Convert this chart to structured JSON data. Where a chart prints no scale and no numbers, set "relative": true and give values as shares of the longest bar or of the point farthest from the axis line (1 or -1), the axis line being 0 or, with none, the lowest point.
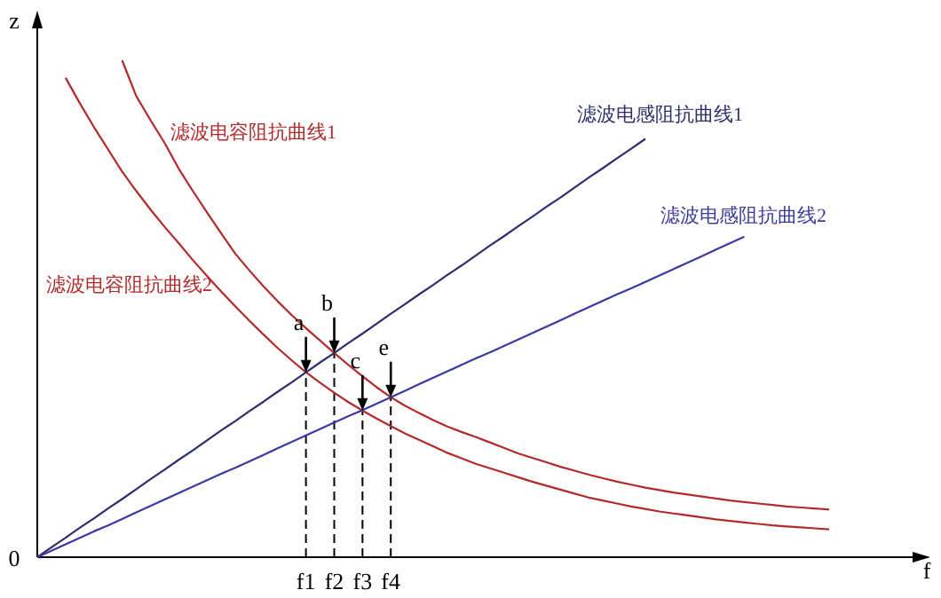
{
  "chart_data": {
    "type": "line",
    "relative": true,
    "xlabel": "f",
    "ylabel": "z",
    "marker": "none",
    "line_style": "solid",
    "categories": [
      null,
      null,
      null,
      null,
      null,
      null,
      null,
      null,
      null,
      null,
      null,
      null,
      null,
      null,
      null,
      null,
      null,
      null,
      null,
      "f1",
      null,
      "f2",
      null,
      "f3",
      null,
      "f4",
      null,
      null,
      null,
      null,
      null,
      null,
      null,
      null,
      null,
      null,
      null,
      null,
      null,
      null,
      null,
      null,
      null,
      null,
      null,
      null,
      null,
      null,
      null,
      null,
      null,
      null,
      null,
      null,
      null,
      null,
      null
    ],
    "series": [
      {
        "name": "滤波电容阻抗曲线1",
        "color": "#b22a2a",
        "values": [
          null,
          null,
          null,
          null,
          null,
          null,
          1.0,
          0.928,
          0.88,
          0.834,
          0.782,
          0.737,
          0.694,
          0.652,
          0.611,
          0.577,
          0.545,
          0.515,
          0.487,
          0.461,
          0.436,
          0.411,
          0.387,
          0.364,
          0.342,
          0.322,
          0.305,
          0.29,
          0.276,
          0.263,
          0.252,
          0.242,
          0.231,
          0.22,
          0.209,
          0.2,
          0.191,
          0.182,
          0.174,
          0.166,
          0.159,
          0.152,
          0.146,
          0.14,
          0.135,
          0.13,
          0.126,
          0.122,
          0.118,
          0.114,
          0.111,
          0.108,
          0.105,
          0.102,
          0.1,
          0.098,
          0.096
        ]
      },
      {
        "name": "滤波电容阻抗曲线2",
        "color": "#b22a2a",
        "values": [
          null,
          null,
          0.965,
          0.914,
          0.866,
          0.821,
          0.776,
          0.737,
          0.7,
          0.665,
          0.632,
          0.598,
          0.566,
          0.535,
          0.505,
          0.476,
          0.448,
          0.421,
          0.396,
          0.372,
          0.351,
          0.331,
          0.312,
          0.295,
          0.279,
          0.264,
          0.249,
          0.236,
          0.223,
          0.21,
          0.199,
          0.188,
          0.179,
          0.17,
          0.161,
          0.152,
          0.144,
          0.136,
          0.128,
          0.12,
          0.114,
          0.108,
          0.102,
          0.097,
          0.092,
          0.088,
          0.084,
          0.08,
          0.076,
          0.073,
          0.07,
          0.067,
          0.064,
          0.062,
          0.06,
          0.058,
          0.056
        ]
      },
      {
        "name": "滤波电感阻抗曲线1",
        "color": "#2e2e6e",
        "values": [
          0,
          0.02,
          0.039,
          0.059,
          0.078,
          0.098,
          0.117,
          0.137,
          0.157,
          0.176,
          0.196,
          0.215,
          0.235,
          0.255,
          0.274,
          0.294,
          0.313,
          0.333,
          0.352,
          0.372,
          0.392,
          0.411,
          0.431,
          0.45,
          0.47,
          0.49,
          0.509,
          0.529,
          0.548,
          0.568,
          0.587,
          0.607,
          0.627,
          0.646,
          0.666,
          0.685,
          0.705,
          0.724,
          0.744,
          0.764,
          0.783,
          0.803,
          0.822,
          0.842,
          null,
          null,
          null,
          null,
          null,
          null,
          null,
          null,
          null,
          null,
          null,
          null,
          null
        ]
      },
      {
        "name": "滤波电感阻抗曲线2",
        "color": "#3a3aa0",
        "values": [
          0,
          0.013,
          0.026,
          0.039,
          0.052,
          0.064,
          0.077,
          0.09,
          0.103,
          0.116,
          0.129,
          0.142,
          0.155,
          0.168,
          0.18,
          0.193,
          0.206,
          0.219,
          0.232,
          0.245,
          0.258,
          0.271,
          0.284,
          0.296,
          0.309,
          0.322,
          0.335,
          0.348,
          0.361,
          0.374,
          0.387,
          0.4,
          0.412,
          0.425,
          0.438,
          0.451,
          0.464,
          0.477,
          0.49,
          0.503,
          0.516,
          0.529,
          0.541,
          0.554,
          0.567,
          0.58,
          0.593,
          0.606,
          0.619,
          0.632,
          0.645,
          null,
          null,
          null,
          null,
          null,
          null
        ]
      }
    ],
    "ref_lines": [
      {
        "axis": "x",
        "value": "f1",
        "color": "#000000",
        "line_style": "dashed"
      },
      {
        "axis": "x",
        "value": "f2",
        "color": "#000000",
        "line_style": "dashed"
      },
      {
        "axis": "x",
        "value": "f3",
        "color": "#000000",
        "line_style": "dashed"
      },
      {
        "axis": "x",
        "value": "f4",
        "color": "#000000",
        "line_style": "dashed"
      }
    ],
    "annotations": [
      {
        "text": "a",
        "x": "f1",
        "y": 0.372
      },
      {
        "text": "b",
        "x": "f2",
        "y": 0.411
      },
      {
        "text": "c",
        "x": "f3",
        "y": 0.295
      },
      {
        "text": "e",
        "x": "f4",
        "y": 0.322
      },
      "0"
    ]
  }
}
